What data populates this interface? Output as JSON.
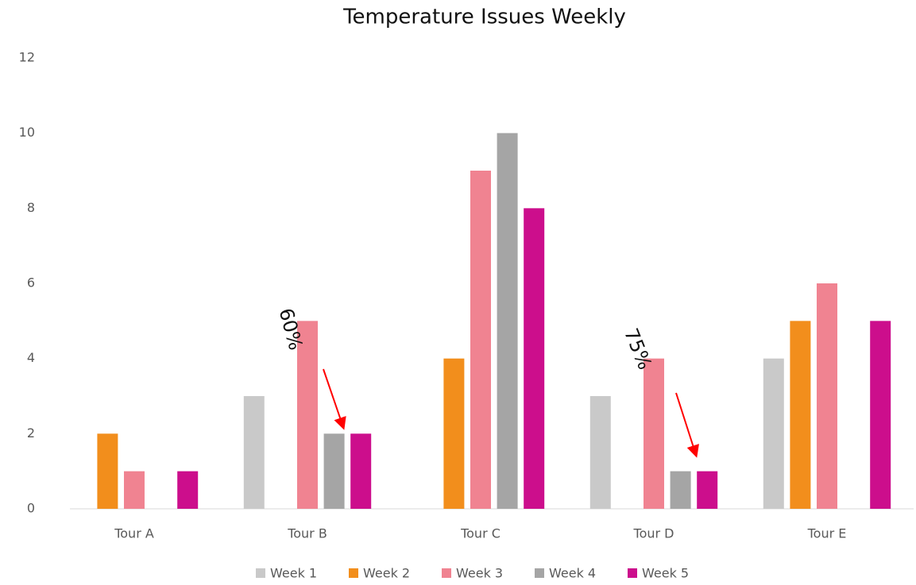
{
  "chart_data": {
    "type": "bar",
    "title": "Temperature Issues Weekly",
    "categories": [
      "Tour A",
      "Tour B",
      "Tour C",
      "Tour D",
      "Tour E"
    ],
    "series": [
      {
        "name": "Week 1",
        "color": "#c9c9c9",
        "values": [
          0,
          3,
          0,
          3,
          4
        ]
      },
      {
        "name": "Week 2",
        "color": "#f28e1c",
        "values": [
          2,
          0,
          4,
          0,
          5
        ]
      },
      {
        "name": "Week 3",
        "color": "#f08391",
        "values": [
          1,
          5,
          9,
          4,
          6
        ]
      },
      {
        "name": "Week 4",
        "color": "#a5a5a5",
        "values": [
          0,
          2,
          10,
          1,
          0
        ]
      },
      {
        "name": "Week 5",
        "color": "#cc0e8c",
        "values": [
          1,
          2,
          8,
          1,
          5
        ]
      }
    ],
    "ylim": [
      0,
      12
    ],
    "yticks": [
      0,
      2,
      4,
      6,
      8,
      10,
      12
    ],
    "grid": false,
    "legend": "bottom",
    "annotations": [
      "60%",
      "75%"
    ]
  }
}
